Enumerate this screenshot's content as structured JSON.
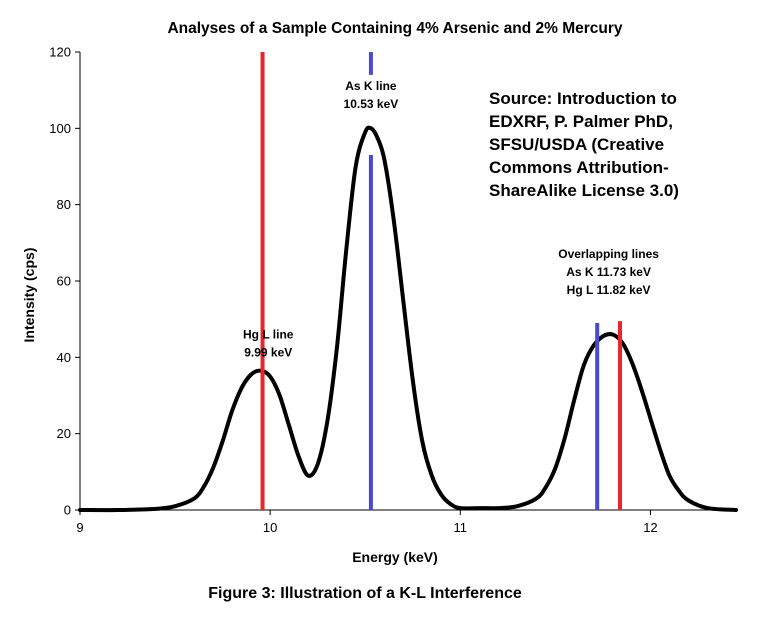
{
  "chart_data": {
    "type": "line",
    "title": "Analyses of a Sample Containing 4% Arsenic and 2% Mercury",
    "xlabel": "Energy (keV)",
    "ylabel": "Intensity (cps)",
    "xlim": [
      9,
      12.45
    ],
    "ylim": [
      0,
      120
    ],
    "x_ticks": [
      9,
      10,
      11,
      12
    ],
    "y_ticks": [
      0,
      20,
      40,
      60,
      80,
      100,
      120
    ],
    "grid": false,
    "line_color": "#000000",
    "series": [
      {
        "x": [
          9.0,
          9.2,
          9.4,
          9.5,
          9.6,
          9.65,
          9.7,
          9.75,
          9.8,
          9.85,
          9.9,
          9.95,
          10.0,
          10.05,
          10.1,
          10.15,
          10.2,
          10.25,
          10.3,
          10.35,
          10.4,
          10.45,
          10.5,
          10.53,
          10.56,
          10.6,
          10.65,
          10.7,
          10.75,
          10.8,
          10.85,
          10.9,
          10.95,
          11.0,
          11.1,
          11.2,
          11.3,
          11.4,
          11.45,
          11.5,
          11.55,
          11.6,
          11.65,
          11.7,
          11.75,
          11.8,
          11.85,
          11.9,
          11.95,
          12.0,
          12.05,
          12.1,
          12.15,
          12.2,
          12.3,
          12.45
        ],
        "y": [
          0,
          0,
          0.3,
          1,
          3,
          6,
          11,
          18,
          26,
          32,
          35.5,
          36.5,
          35,
          30,
          22,
          14,
          9,
          12,
          23,
          42,
          68,
          90,
          99,
          100,
          98,
          92,
          76,
          55,
          34,
          18,
          9,
          4,
          1.5,
          0.5,
          0.5,
          0.5,
          1,
          3,
          6,
          11,
          19,
          29,
          38,
          43,
          45.5,
          46,
          44,
          39,
          32,
          24,
          16,
          9,
          5,
          2.5,
          0.5,
          0
        ]
      }
    ],
    "vertical_lines": [
      {
        "x": 9.96,
        "top": 120,
        "color": "#e8262b"
      },
      {
        "x": 10.53,
        "top": 93,
        "color": "#4a4ad0"
      },
      {
        "x": 10.53,
        "top": 120,
        "bottom": 114,
        "color": "#4a4ad0"
      },
      {
        "x": 11.72,
        "top": 49,
        "color": "#4a4ad0"
      },
      {
        "x": 11.84,
        "top": 49.5,
        "color": "#e8262b"
      }
    ],
    "annotations": [
      {
        "lines": [
          "Hg L  line",
          "9.99 keV"
        ],
        "x": 9.99,
        "y": 45
      },
      {
        "lines": [
          "As K  line",
          "10.53 keV"
        ],
        "x": 10.53,
        "y": 110
      },
      {
        "lines": [
          "Overlapping lines",
          "As K  11.73 keV",
          "Hg L  11.82 keV"
        ],
        "x": 11.78,
        "y": 66
      }
    ]
  },
  "source_note": [
    "Source: Introduction to",
    "EDXRF, P. Palmer PhD,",
    "SFSU/USDA (Creative",
    "Commons Attribution-",
    "ShareAlike License 3.0)"
  ],
  "caption": "Figure 3: Illustration of a K-L Interference"
}
